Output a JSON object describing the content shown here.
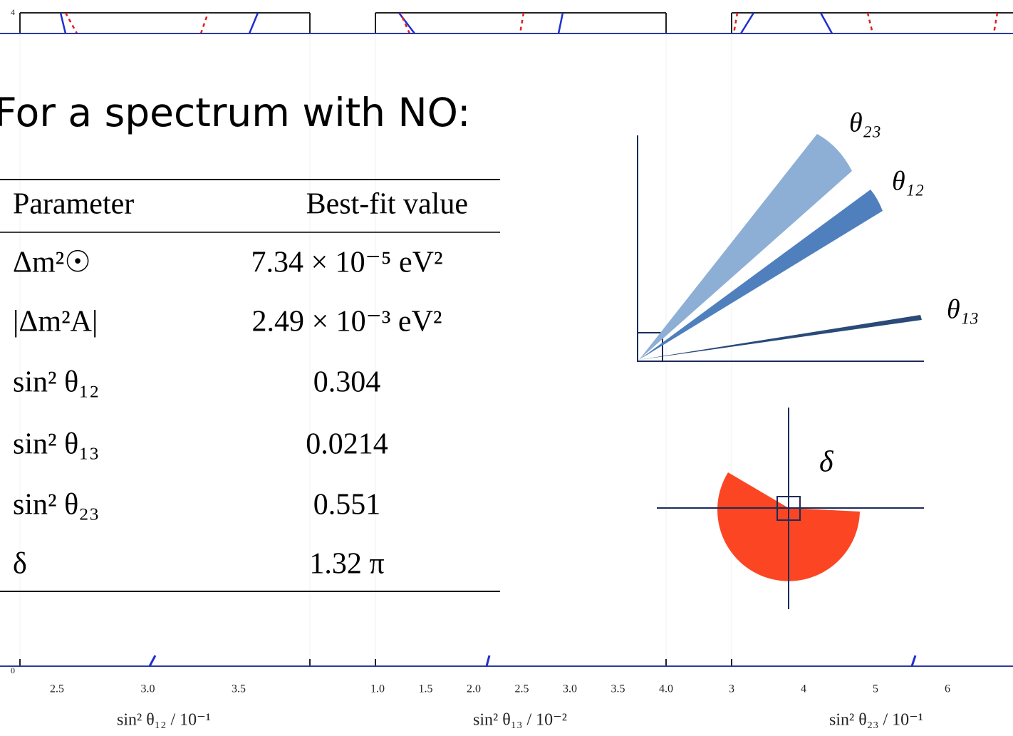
{
  "heading": "For a spectrum with NO:",
  "table": {
    "header": [
      "Parameter",
      "Best-fit value"
    ],
    "rows": [
      [
        "Δm²☉",
        "7.34 × 10⁻⁵ eV²"
      ],
      [
        "|Δm²A|",
        "2.49 × 10⁻³ eV²"
      ],
      [
        "sin² θ₁₂",
        "0.304"
      ],
      [
        "sin² θ₁₃",
        "0.0214"
      ],
      [
        "sin² θ₂₃",
        "0.551"
      ],
      [
        "δ",
        "1.32 π"
      ]
    ]
  },
  "diagram": {
    "angle_labels": [
      "θ₂₃",
      "θ₁₂",
      "θ₁₃"
    ],
    "phase_label": "δ"
  },
  "background": {
    "top_tick": "4",
    "bottom_tick": "0",
    "panels": [
      {
        "ticks": [
          "2.5",
          "3.0",
          "3.5"
        ],
        "axis_title": "sin² θ₁₂  / 10⁻¹"
      },
      {
        "ticks": [
          "1.0",
          "1.5",
          "2.0",
          "2.5",
          "3.0",
          "3.5",
          "4.0"
        ],
        "axis_title": "sin² θ₁₃ / 10⁻²"
      },
      {
        "ticks": [
          "3",
          "4",
          "5",
          "6"
        ],
        "axis_title": "sin² θ₂₃ / 10⁻¹"
      }
    ]
  }
}
